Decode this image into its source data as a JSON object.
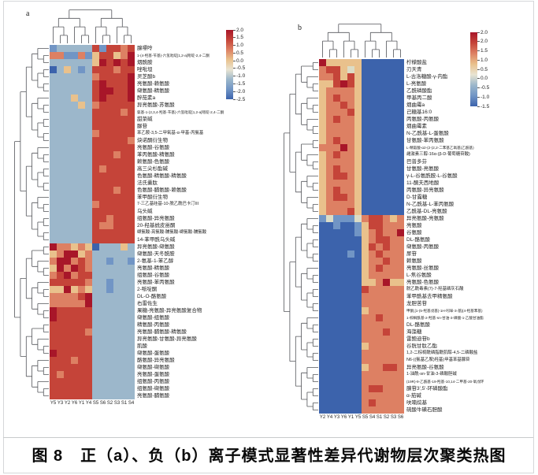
{
  "figure": {
    "caption_label": "图 8",
    "caption_text": "正（a）、负（b）离子模式显著性差异代谢物层次聚类热图"
  },
  "palette": {
    "R": "#a81629",
    "r": "#c54439",
    "o": "#dd8063",
    "y": "#e9c18c",
    "g": "#dcdcc6",
    "l": "#9cb7cb",
    "b": "#7195c5",
    "d": "#3c63ac"
  },
  "cell_value_map": {
    "R": 2.0,
    "r": 1.5,
    "o": 1.0,
    "y": 0.4,
    "g": 0.0,
    "l": -0.8,
    "b": -1.5,
    "d": -2.0
  },
  "colorbar_colors": [
    "#a81629",
    "#c54439",
    "#dd8063",
    "#e9c18c",
    "#e9e4d2",
    "#9cb7cb",
    "#7195c5",
    "#3c63ac"
  ],
  "chart_data": [
    {
      "type": "heatmap",
      "panel": "a",
      "columns": [
        "Y5",
        "Y3",
        "Y2",
        "Y6",
        "Y1",
        "Y4",
        "S5",
        "S6",
        "S2",
        "S3",
        "S1",
        "S4"
      ],
      "colorbar_ticks": [
        "2.0",
        "1.5",
        "1.0",
        "0.5",
        "0.0",
        "-0.5",
        "-1.0",
        "-1.5",
        "-2.0",
        "-2.5"
      ],
      "cluster_split_col": 6,
      "cluster_split_row": 28,
      "rows": [
        {
          "label": "腺嘌呤",
          "cells": "blllllrbrror"
        },
        {
          "label": "1-(4-羟基-苄基)-六氢吡啶[1,2-a]嘧啶-2,4-二酮",
          "cells": "oobbobyrryoR"
        },
        {
          "label": "烟酰胺",
          "cells": "llllllyRrRrR"
        },
        {
          "label": "唑吡坦",
          "cells": "dlylblrrrorr"
        },
        {
          "label": "灵芝酸b",
          "cells": "llllllorrrrR"
        },
        {
          "label": "亮氨酸-赖氨酸",
          "cells": "llllllrRrrrR"
        },
        {
          "label": "缬氨酸-精氨酸",
          "cells": "llllllrRRrrR"
        },
        {
          "label": "醉茄素a",
          "cells": "lllyllrRrrrR"
        },
        {
          "label": "异亮氨酸-苏氨酸",
          "cells": "llllylorrrrr"
        },
        {
          "label": "氨基-1-(2,3,4-羟基-苄基)-六氢吡啶[1,2-a]嘧啶-2,4-二酮",
          "cells": "llllllrrrror"
        },
        {
          "label": "甜菜碱",
          "cells": "llllllrrrrrr"
        },
        {
          "label": "脲苷",
          "cells": "llllllrrrrrr"
        },
        {
          "label": "苯乙胺-3,5-二甲氧基-α-甲基-丙氨基",
          "cells": "llllllorrrrr"
        },
        {
          "label": "炔诺酮衍生物",
          "cells": "llllllrrrrro"
        },
        {
          "label": "亮氨酸-谷氨酸",
          "cells": "llllllrrrrrr"
        },
        {
          "label": "苯丙氨酸-精氨酸",
          "cells": "llllllrrrorr"
        },
        {
          "label": "赖氨酸-色氨酸",
          "cells": "llllllrrrrrr"
        },
        {
          "label": "高三尖杉酯碱",
          "cells": "llllllrorrrr"
        },
        {
          "label": "色氨酸-精氨酸-精氨酸",
          "cells": "llllllrrrrrr"
        },
        {
          "label": "法氏囊肽",
          "cells": "llllllrrrrrr"
        },
        {
          "label": "色氨酸-脯氨酸-赖氨酸",
          "cells": "llllllrrrorr"
        },
        {
          "label": "苯甲酸衍生物",
          "cells": "llllllrrrrrr"
        },
        {
          "label": "7-三乙基硅基-10-脱乙酰巴卡汀III",
          "cells": "llllllorrrrr"
        },
        {
          "label": "乌头碱",
          "cells": "llllllrrrrrr"
        },
        {
          "label": "组氨酸-异亮氨酸",
          "cells": "llllllrrorrr"
        },
        {
          "label": "20-羟基蜕皮甾酮",
          "cells": "llllllroorrr"
        },
        {
          "label": "缬氨酸-亮氨酸-脯氨酸-缬氨酸-脯氨酸",
          "cells": "llllllrrrrrr"
        },
        {
          "label": "14-苯甲酰乌头碱",
          "cells": "llllllrrrrrr"
        },
        {
          "label": "异亮氨酸-缬氨酸",
          "cells": "Rooyoydlllyl"
        },
        {
          "label": "缬氨酸-天冬酰胺",
          "cells": "yoRRyollllll"
        },
        {
          "label": "2-氨基-1-苯乙醇",
          "cells": "oRRorollbllb"
        },
        {
          "label": "亮氨酸-精氨酸",
          "cells": "yRoRrollllll"
        },
        {
          "label": "组氨酸-谷氨酸",
          "cells": "orRorrllllll"
        },
        {
          "label": "亮氨酸-苯丙氨酸",
          "cells": "rrrrrollblll"
        },
        {
          "label": "2-哌啶酮",
          "cells": "yyRyoyllblll"
        },
        {
          "label": "DL-O-酪氨酸",
          "cells": "oooorRllllll"
        },
        {
          "label": "右雷佐生",
          "cells": "oooooRllllll"
        },
        {
          "label": "果糖-亮氨酸-异亮氨酸复合物",
          "cells": "Rrrrrrllllll"
        },
        {
          "label": "缬氨酸-组氨酸",
          "cells": "Rrrrrrllllll"
        },
        {
          "label": "精氨酸-丙氨酸",
          "cells": "rrrrrrllllll"
        },
        {
          "label": "亮氨酸-脯氨酸-精氨酸",
          "cells": "rrrrrollllll"
        },
        {
          "label": "异亮氨酸-甘氨酸-异亮氨酸",
          "cells": "rrrrrrllllll"
        },
        {
          "label": "肌酸",
          "cells": "rrrrrrllllll"
        },
        {
          "label": "缬氨酸-蛋氨酸",
          "cells": "Rrrrrrllllll"
        },
        {
          "label": "酪氨酸-异亮氨酸",
          "cells": "rrrorrllllll"
        },
        {
          "label": "缬氨酸-缬氨酸",
          "cells": "rrrrrrllllll"
        },
        {
          "label": "亮氨酸-蛋氨酸",
          "cells": "rorrrrllllll"
        },
        {
          "label": "组氨酸-丙氨酸",
          "cells": "rrrrrrllllll"
        },
        {
          "label": "组氨酸-缬氨酸",
          "cells": "rrrrrrllllll"
        },
        {
          "label": "亮氨酸-脯氨酸",
          "cells": "rrrrrrllllll"
        }
      ]
    },
    {
      "type": "heatmap",
      "panel": "b",
      "columns": [
        "Y2",
        "Y4",
        "Y3",
        "Y6",
        "Y1",
        "Y5",
        "S5",
        "S4",
        "S1",
        "S2",
        "S3",
        "S6"
      ],
      "colorbar_ticks": [
        "2.0",
        "2.0",
        "1.5",
        "1.0",
        "0.5",
        "0.0",
        "-0.5",
        "-1.0",
        "-1.5"
      ],
      "cluster_split_col": 6,
      "cluster_split_row": 22,
      "rows": [
        {
          "label": "柠檬酸盐",
          "cells": "Ryyyyydddddd"
        },
        {
          "label": "刃天青",
          "cells": "orrygydddddd"
        },
        {
          "label": "L-古洛糖酸-γ-内酯",
          "cells": "ooryrydddddd"
        },
        {
          "label": "L-亮氨酸",
          "cells": "yyrRrydddddd"
        },
        {
          "label": "乙酰磷酸酯",
          "cells": "yooooydddddd"
        },
        {
          "label": "甲基丙二酸",
          "cells": "yorooydddddd"
        },
        {
          "label": "烟曲霉a",
          "cells": "yooroydddddd"
        },
        {
          "label": "己糖基16:0",
          "cells": "yooorydddddd"
        },
        {
          "label": "丙氨酸-丙氨酸",
          "cells": "yorooydddddd"
        },
        {
          "label": "烟曲霉素",
          "cells": "yooooydddddd"
        },
        {
          "label": "N-乙酰基-L-蛋氨酸",
          "cells": "yooooydddddd"
        },
        {
          "label": "甘氨酸-苯丙氨酸",
          "cells": "yorooydddddd"
        },
        {
          "label": "L-精氨酸-α2-(2-(2,2-二苯基乙氧基)乙酰基)",
          "cells": "oooRoydddddd"
        },
        {
          "label": "雌激素三醇-16α-(β-D-葡萄糖苷酸)",
          "cells": "yorooydddddd"
        },
        {
          "label": "巴普多芬",
          "cells": "yooooydddddd"
        },
        {
          "label": "甘氨酸-亮氨酸",
          "cells": "yorooydddddd"
        },
        {
          "label": "γ-L-谷氨酰胺-L-谷氨酸",
          "cells": "yorroydddddd"
        },
        {
          "label": "11-酮夫西地酸",
          "cells": "yooooydddddd"
        },
        {
          "label": "丙氨酸-异亮氨酸",
          "cells": "yorooydddddd"
        },
        {
          "label": "D-甘露糖",
          "cells": "yorroydddddd"
        },
        {
          "label": "N-乙酰基-L-苯丙氨酸",
          "cells": "yooooydddddd"
        },
        {
          "label": "乙酰基-DL-亮氨酸",
          "cells": "yooorydddddd"
        },
        {
          "label": "异亮氨酸-亮氨酸",
          "cells": "bgbbbgorroyo"
        },
        {
          "label": "亮氨酸",
          "cells": "ddbddbyrrooo"
        },
        {
          "label": "谷氨酸",
          "cells": "dddddbyorooR"
        },
        {
          "label": "DL-酪氨酸",
          "cells": "ddddddyorroo"
        },
        {
          "label": "缬氨酸-丙氨酸",
          "cells": "ddddddyroroo"
        },
        {
          "label": "尿苷",
          "cells": "ddddbdyorooo"
        },
        {
          "label": "赖氨酸",
          "cells": "ddddddyooroo"
        },
        {
          "label": "亮氨酸-丝氨酸",
          "cells": "ddddddyorooo"
        },
        {
          "label": "L-焦谷氨酸",
          "cells": "ddddddyooooo"
        },
        {
          "label": "亮氨酸-色氨酸",
          "cells": "ddddddyyoRyy"
        },
        {
          "label": "脱乙酰毒素(7)-7-羟基磷灰石酸",
          "cells": "ddddddrooooo"
        },
        {
          "label": "苯甲酰基去甲精氨酸",
          "cells": "ddddddoooooo"
        },
        {
          "label": "龙胆苦苷",
          "cells": "ddddddoooooo"
        },
        {
          "label": "甲酮,[1-(5-羟基戊基)-1H-吲哚-3-基](4-羟基苯基)",
          "cells": "ddddddyooooo"
        },
        {
          "label": "1-棕榈酰基-2-羟基-sn-甘油-3-磷酸-1-乙酸甘油酯",
          "cells": "ddddddoorooo"
        },
        {
          "label": "DL-酪氨酸",
          "cells": "ddddddoooooo"
        },
        {
          "label": "海藻糖",
          "cells": "ddddddoooroo"
        },
        {
          "label": "雷鲍迪苷b",
          "cells": "ddddddoooooo"
        },
        {
          "label": "谷胱甘肽乙酯",
          "cells": "ddddddyooooo"
        },
        {
          "label": "1,2-二棕榈酰磷脂酰肌醇-4,5-二磷酸盐",
          "cells": "ddddddoooooo"
        },
        {
          "label": "N6-((氨基乙胺)羟基)甲基苯基腺苷",
          "cells": "ddddddoooooo"
        },
        {
          "label": "异亮氨酸-谷氨酸",
          "cells": "ddddddyoorro"
        },
        {
          "label": "1-油酰-sn-甘油-3-磷酸胆碱",
          "cells": "ddddddoooooo"
        },
        {
          "label": "(19R)-9-乙酰基-19-羟基-10,14-二甲基-20-氧戊环",
          "cells": "ddddddoooooo"
        },
        {
          "label": "腺苷3',5'-环磷酸酯",
          "cells": "ddddddorrooo"
        },
        {
          "label": "α-茄碱",
          "cells": "ddddddoooooo"
        },
        {
          "label": "呋喃烷基",
          "cells": "ddddddoroooo"
        },
        {
          "label": "硫酸牛磺石胆酸",
          "cells": "ddddddoooooo"
        }
      ]
    }
  ]
}
